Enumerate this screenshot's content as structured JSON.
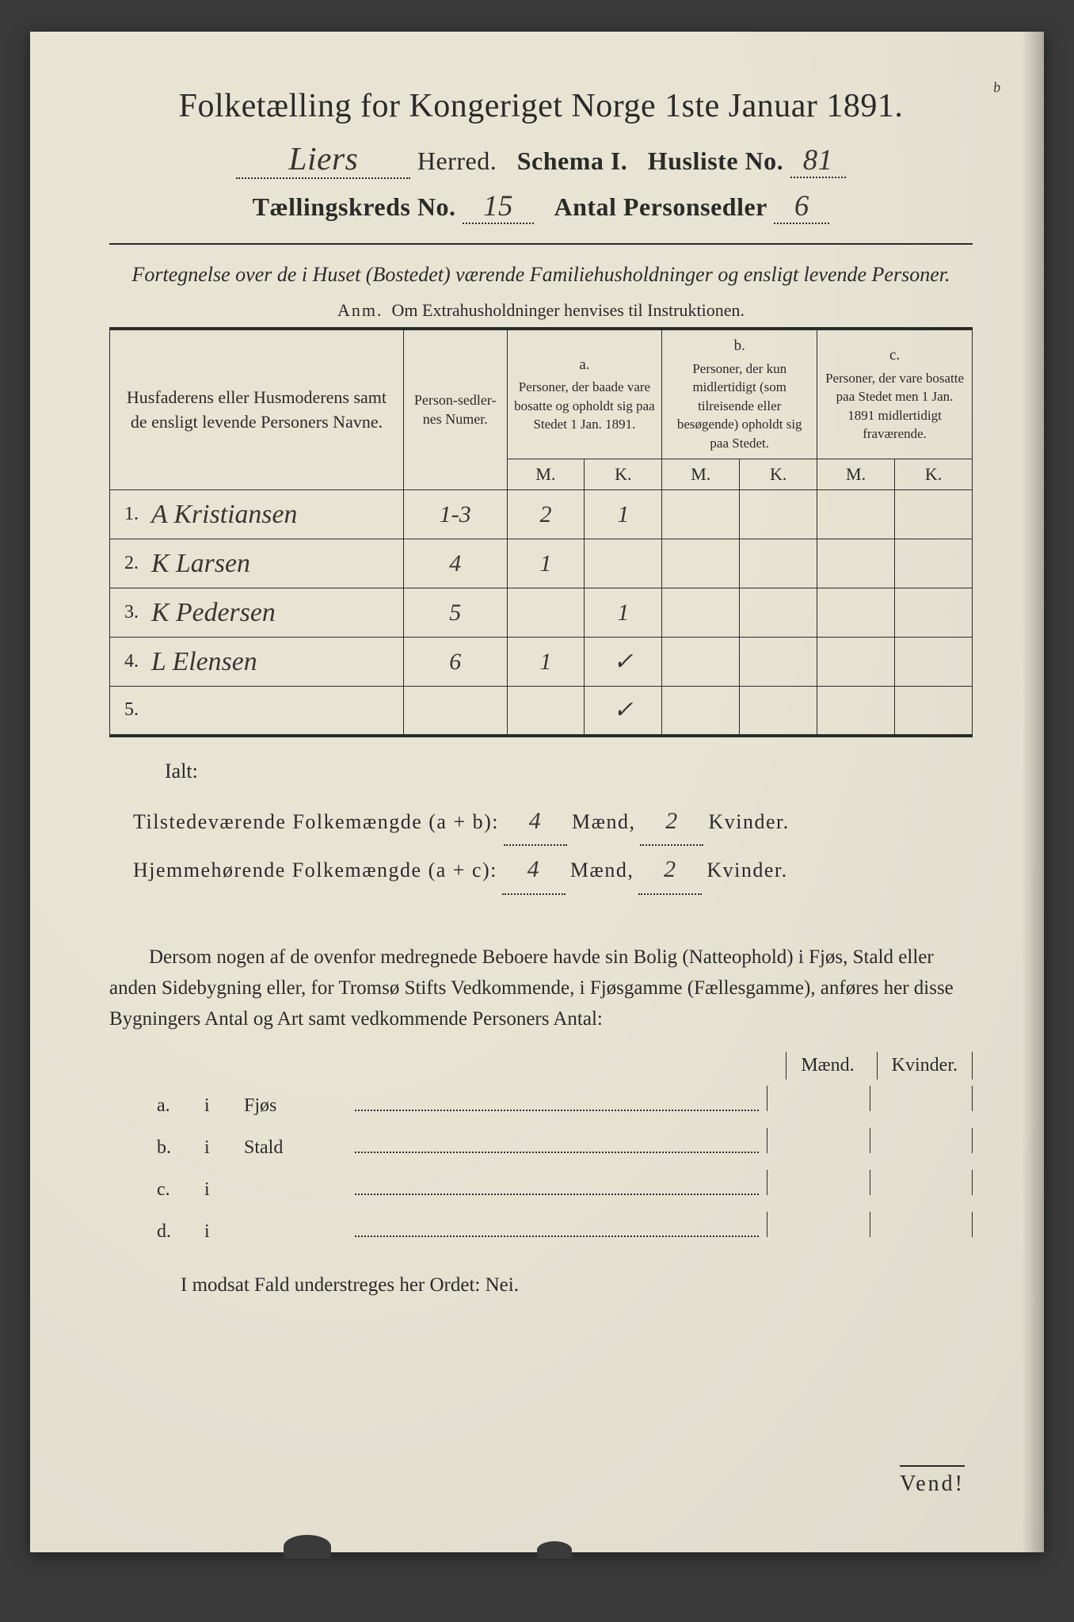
{
  "colors": {
    "paper": "#e8e4d4",
    "ink": "#2a2a28",
    "pencil_blue": "#3a7ba8",
    "handwriting": "#3a3530"
  },
  "annotation_corner": "b",
  "header": {
    "title": "Folketælling for Kongeriget Norge 1ste Januar 1891.",
    "herred_value": "Liers",
    "herred_label": "Herred.",
    "schema_label": "Schema I.",
    "husliste_label": "Husliste No.",
    "husliste_value": "81",
    "kreds_label": "Tællingskreds No.",
    "kreds_value": "15",
    "sedler_label": "Antal Personsedler",
    "sedler_value": "6"
  },
  "subtitle": "Fortegnelse over de i Huset (Bostedet) værende Familiehusholdninger og ensligt levende Personer.",
  "anm_label": "Anm.",
  "anm_text": "Om Extrahusholdninger henvises til Instruktionen.",
  "table": {
    "col_name": "Husfaderens eller Husmoderens samt de ensligt levende Personers Navne.",
    "col_num": "Person-sedler-nes Numer.",
    "group_a_label": "a.",
    "group_a_text": "Personer, der baade vare bosatte og opholdt sig paa Stedet 1 Jan. 1891.",
    "group_b_label": "b.",
    "group_b_text": "Personer, der kun midlertidigt (som tilreisende eller besøgende) opholdt sig paa Stedet.",
    "group_c_label": "c.",
    "group_c_text": "Personer, der vare bosatte paa Stedet men 1 Jan. 1891 midlertidigt fraværende.",
    "mk_m": "M.",
    "mk_k": "K.",
    "rows": [
      {
        "n": "1.",
        "name": "A Kristiansen",
        "num": "1-3",
        "am": "2",
        "ak": "1",
        "bm": "",
        "bk": "",
        "cm": "",
        "ck": ""
      },
      {
        "n": "2.",
        "name": "K Larsen",
        "num": "4",
        "am": "1",
        "ak": "",
        "bm": "",
        "bk": "",
        "cm": "",
        "ck": ""
      },
      {
        "n": "3.",
        "name": "K Pedersen",
        "num": "5",
        "am": "",
        "ak": "1",
        "bm": "",
        "bk": "",
        "cm": "",
        "ck": ""
      },
      {
        "n": "4.",
        "name": "L Elensen",
        "num": "6",
        "am": "1",
        "ak": "✓",
        "bm": "",
        "bk": "",
        "cm": "",
        "ck": ""
      },
      {
        "n": "5.",
        "name": "",
        "num": "",
        "am": "",
        "ak": "✓",
        "bm": "",
        "bk": "",
        "cm": "",
        "ck": ""
      }
    ]
  },
  "ialt_label": "Ialt:",
  "totals": {
    "line1_label": "Tilstedeværende Folkemængde (a + b):",
    "line2_label": "Hjemmehørende Folkemængde (a + c):",
    "maend_label": "Mænd,",
    "kvinder_label": "Kvinder.",
    "line1_m": "4",
    "line1_k": "2",
    "line2_m": "4",
    "line2_k": "2"
  },
  "body_paragraph": "Dersom nogen af de ovenfor medregnede Beboere havde sin Bolig (Natteophold) i Fjøs, Stald eller anden Sidebygning eller, for Tromsø Stifts Vedkommende, i Fjøsgamme (Fællesgamme), anføres her disse Bygningers Antal og Art samt vedkommende Personers Antal:",
  "outbuildings": {
    "header_m": "Mænd.",
    "header_k": "Kvinder.",
    "rows": [
      {
        "lbl": "a.",
        "i": "i",
        "name": "Fjøs"
      },
      {
        "lbl": "b.",
        "i": "i",
        "name": "Stald"
      },
      {
        "lbl": "c.",
        "i": "i",
        "name": ""
      },
      {
        "lbl": "d.",
        "i": "i",
        "name": ""
      }
    ]
  },
  "nei_line": "I modsat Fald understreges her Ordet: Nei.",
  "vend": "Vend!"
}
